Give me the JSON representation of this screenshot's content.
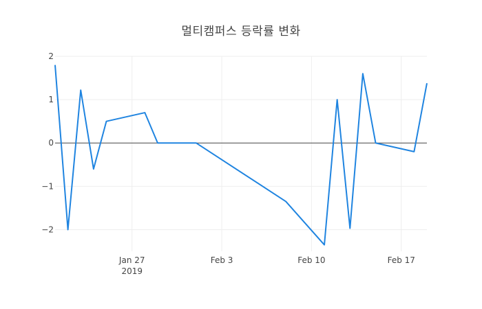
{
  "chart_data": {
    "type": "line",
    "title": "멀티캠퍼스 등락률 변화",
    "xlabel": "",
    "ylabel": "",
    "x": [
      "2019-01-21",
      "2019-01-22",
      "2019-01-23",
      "2019-01-24",
      "2019-01-25",
      "2019-01-28",
      "2019-01-29",
      "2019-02-01",
      "2019-02-08",
      "2019-02-11",
      "2019-02-12",
      "2019-02-13",
      "2019-02-14",
      "2019-02-15",
      "2019-02-18",
      "2019-02-19"
    ],
    "y": [
      1.8,
      -2.0,
      1.22,
      -0.6,
      0.5,
      0.7,
      0.0,
      0.0,
      -1.35,
      -2.35,
      1.0,
      -1.97,
      1.6,
      0.0,
      -0.2,
      1.38
    ],
    "xlim": [
      "2019-01-21",
      "2019-02-19"
    ],
    "ylim": [
      -2.5,
      2.0
    ],
    "x_ticks": [
      {
        "date": "2019-01-27",
        "label": "Jan 27",
        "sublabel": "2019"
      },
      {
        "date": "2019-02-03",
        "label": "Feb 3",
        "sublabel": ""
      },
      {
        "date": "2019-02-10",
        "label": "Feb 10",
        "sublabel": ""
      },
      {
        "date": "2019-02-17",
        "label": "Feb 17",
        "sublabel": ""
      }
    ],
    "y_ticks": [
      {
        "value": 2,
        "label": "2"
      },
      {
        "value": 1,
        "label": "1"
      },
      {
        "value": 0,
        "label": "0"
      },
      {
        "value": -1,
        "label": "−1"
      },
      {
        "value": -2,
        "label": "−2"
      }
    ],
    "grid": true,
    "zero_line": true,
    "line_color": "#1f84e0",
    "grid_color": "#eeeeee",
    "zero_line_color": "#444444",
    "text_color": "#444444"
  }
}
